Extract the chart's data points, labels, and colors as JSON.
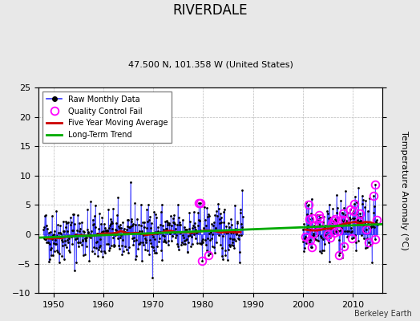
{
  "title": "RIVERDALE",
  "subtitle": "47.500 N, 101.358 W (United States)",
  "credit": "Berkeley Earth",
  "ylabel_right": "Temperature Anomaly (°C)",
  "xlim": [
    1947,
    2016
  ],
  "ylim": [
    -10,
    25
  ],
  "yticks": [
    -10,
    -5,
    0,
    5,
    10,
    15,
    20,
    25
  ],
  "xticks": [
    1950,
    1960,
    1970,
    1980,
    1990,
    2000,
    2010
  ],
  "year_start": 1948,
  "year_end": 1987,
  "year_start2": 2000,
  "year_end2": 2014,
  "seed": 42,
  "bg_color": "#e8e8e8",
  "plot_bg_color": "#ffffff",
  "raw_line_color": "#3333ff",
  "raw_marker_color": "#000000",
  "qc_fail_color": "#ff00ff",
  "moving_avg_color": "#cc0000",
  "trend_color": "#00aa00",
  "legend_loc": "upper left"
}
